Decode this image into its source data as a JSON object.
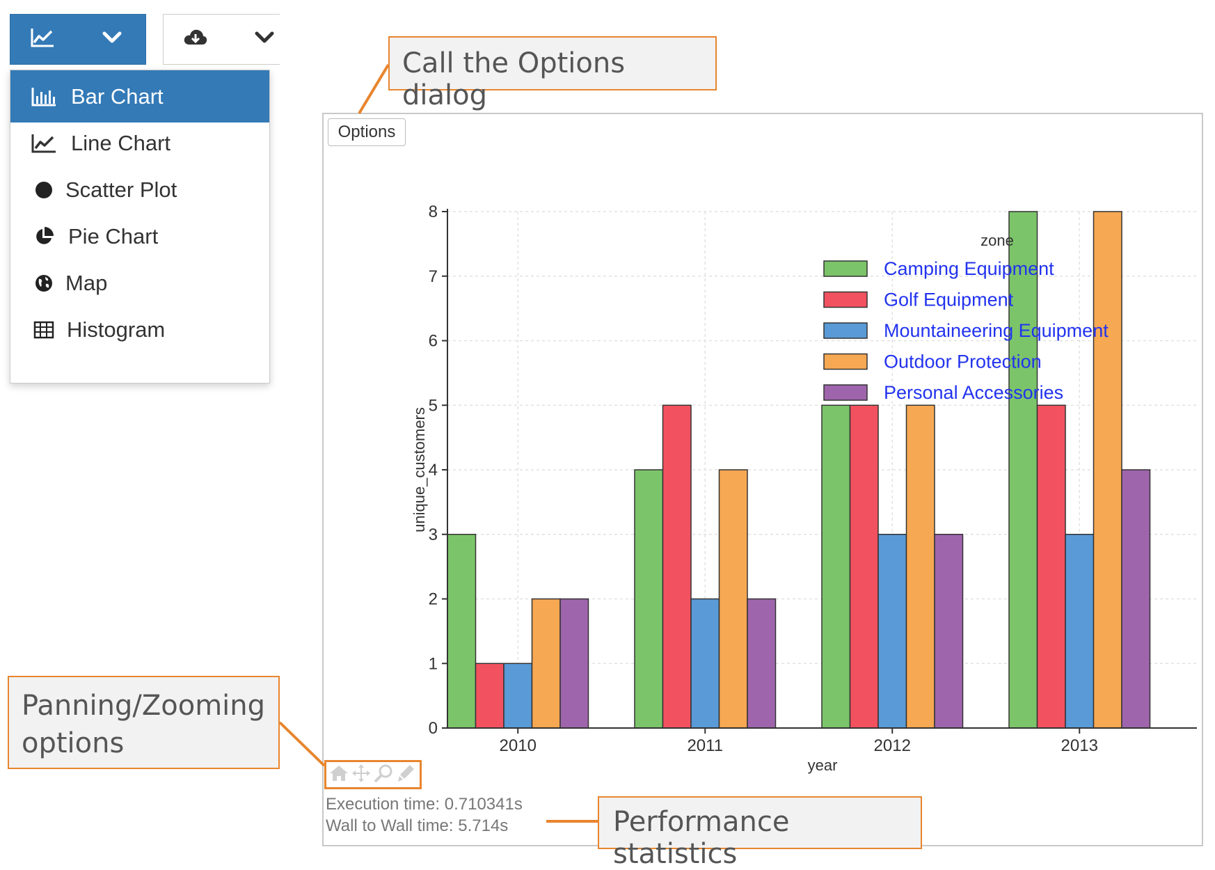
{
  "toolbar": {
    "chart_type_icon": "line-chart-icon",
    "chart_type_caret": "chevron-down-icon",
    "download_icon": "cloud-download-icon",
    "download_caret": "chevron-down-icon",
    "accent_color": "#337ab7"
  },
  "dropdown": {
    "items": [
      {
        "label": "Bar Chart",
        "icon": "bar-chart-icon",
        "active": true
      },
      {
        "label": "Line Chart",
        "icon": "line-chart-icon",
        "active": false
      },
      {
        "label": "Scatter Plot",
        "icon": "scatter-dot-icon",
        "active": false
      },
      {
        "label": "Pie Chart",
        "icon": "pie-chart-icon",
        "active": false
      },
      {
        "label": "Map",
        "icon": "globe-icon",
        "active": false
      },
      {
        "label": "Histogram",
        "icon": "table-grid-icon",
        "active": false
      }
    ]
  },
  "panel": {
    "options_label": "Options",
    "execution_time": "Execution time: 0.710341s",
    "wall_time": "Wall to Wall time: 5.714s",
    "panzoom_tools": [
      "home-icon",
      "pan-move-icon",
      "zoom-magnifier-icon",
      "wheel-zoom-icon"
    ]
  },
  "callouts": {
    "options": "Call the Options dialog",
    "panning_line1": "Panning/Zooming",
    "panning_line2": "options",
    "performance": "Performance statistics",
    "color": "#e8852e"
  },
  "chart_data": {
    "type": "bar",
    "title": "",
    "xlabel": "year",
    "ylabel": "unique_customers",
    "categories": [
      "2010",
      "2011",
      "2012",
      "2013"
    ],
    "ylim": [
      0,
      8
    ],
    "yticks": [
      0,
      1,
      2,
      3,
      4,
      5,
      6,
      7,
      8
    ],
    "grid": true,
    "legend_title": "zone",
    "legend_position": "top-right",
    "series": [
      {
        "name": "Camping Equipment",
        "color": "#7cc46a",
        "values": [
          3,
          4,
          5,
          8
        ]
      },
      {
        "name": "Golf Equipment",
        "color": "#f2525f",
        "values": [
          1,
          5,
          5,
          5
        ]
      },
      {
        "name": "Mountaineering Equipment",
        "color": "#5a9ad6",
        "values": [
          1,
          2,
          3,
          3
        ]
      },
      {
        "name": "Outdoor Protection",
        "color": "#f7a853",
        "values": [
          2,
          4,
          5,
          8
        ]
      },
      {
        "name": "Personal Accessories",
        "color": "#9f65ac",
        "values": [
          2,
          2,
          3,
          4
        ]
      }
    ]
  }
}
